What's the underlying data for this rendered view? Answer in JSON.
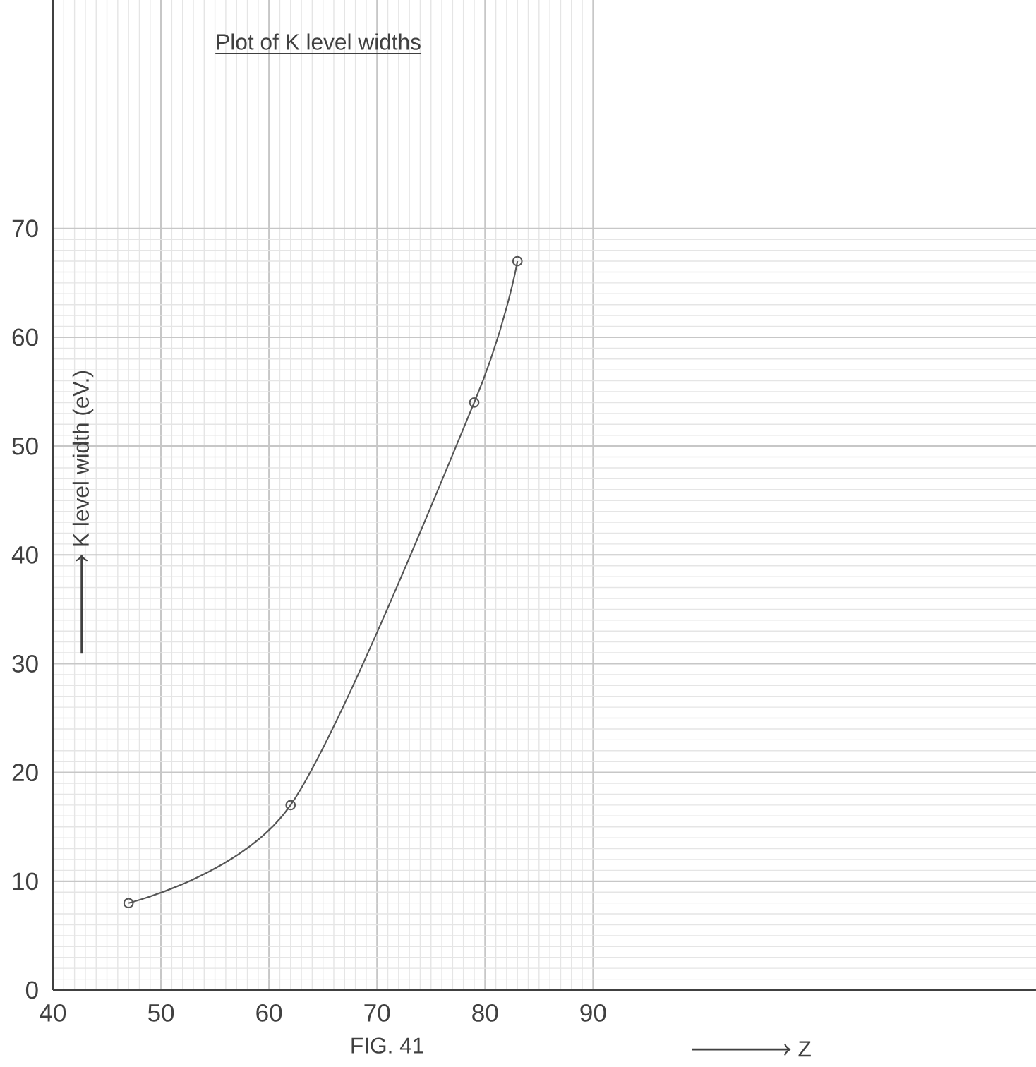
{
  "chart_data": {
    "type": "line",
    "title": "Plot of K level widths",
    "xlabel": "Z",
    "ylabel": "K level width (eV.)",
    "x": [
      47,
      62,
      79,
      83
    ],
    "series": [
      {
        "color": "#555555",
        "values": [
          8,
          17,
          54,
          67
        ]
      }
    ],
    "xlim": [
      40,
      131
    ],
    "ylim": [
      0,
      91
    ],
    "xticks": [
      40,
      50,
      60,
      70,
      80,
      90
    ],
    "yticks": [
      0,
      10,
      20,
      30,
      40,
      50,
      60,
      70
    ],
    "grid": true,
    "marker": "circle",
    "line_style": "solid",
    "annotations": [
      "FIG. 41"
    ]
  }
}
